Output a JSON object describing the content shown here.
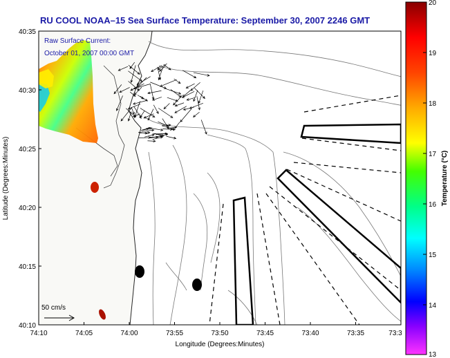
{
  "title": "RU COOL  NOAA–15  Sea Surface Temperature:  September 30, 2007 2246 GMT",
  "legend": {
    "line1": "Raw Surface Current:",
    "line2": "October 01, 2007 00:00 GMT"
  },
  "scale_label": "50 cm/s",
  "axes": {
    "xlabel": "Longitude (Degrees:Minutes)",
    "ylabel": "Latitude (Degrees:Minutes)",
    "x_ticks": [
      "74:10",
      "74:05",
      "74:00",
      "73:55",
      "73:50",
      "73:45",
      "73:40",
      "73:35",
      "73:3"
    ],
    "y_ticks": [
      "40:35",
      "40:30",
      "40:25",
      "40:20",
      "40:15",
      "40:10"
    ]
  },
  "colorbar": {
    "label": "Temperature (°C)",
    "ticks": [
      "20",
      "19",
      "18",
      "17",
      "16",
      "15",
      "14",
      "13"
    ],
    "min": 13,
    "max": 20,
    "colors": [
      "#ff33ff",
      "#8800ff",
      "#0000ff",
      "#0088ff",
      "#00ffff",
      "#00ff88",
      "#44ff00",
      "#ffff00",
      "#ffaa00",
      "#ff4400",
      "#ff0000",
      "#880000"
    ]
  },
  "colors": {
    "title": "#1a1aa6",
    "contour": "#777777",
    "coastline": "#222222",
    "land": "#f9f9f6"
  }
}
